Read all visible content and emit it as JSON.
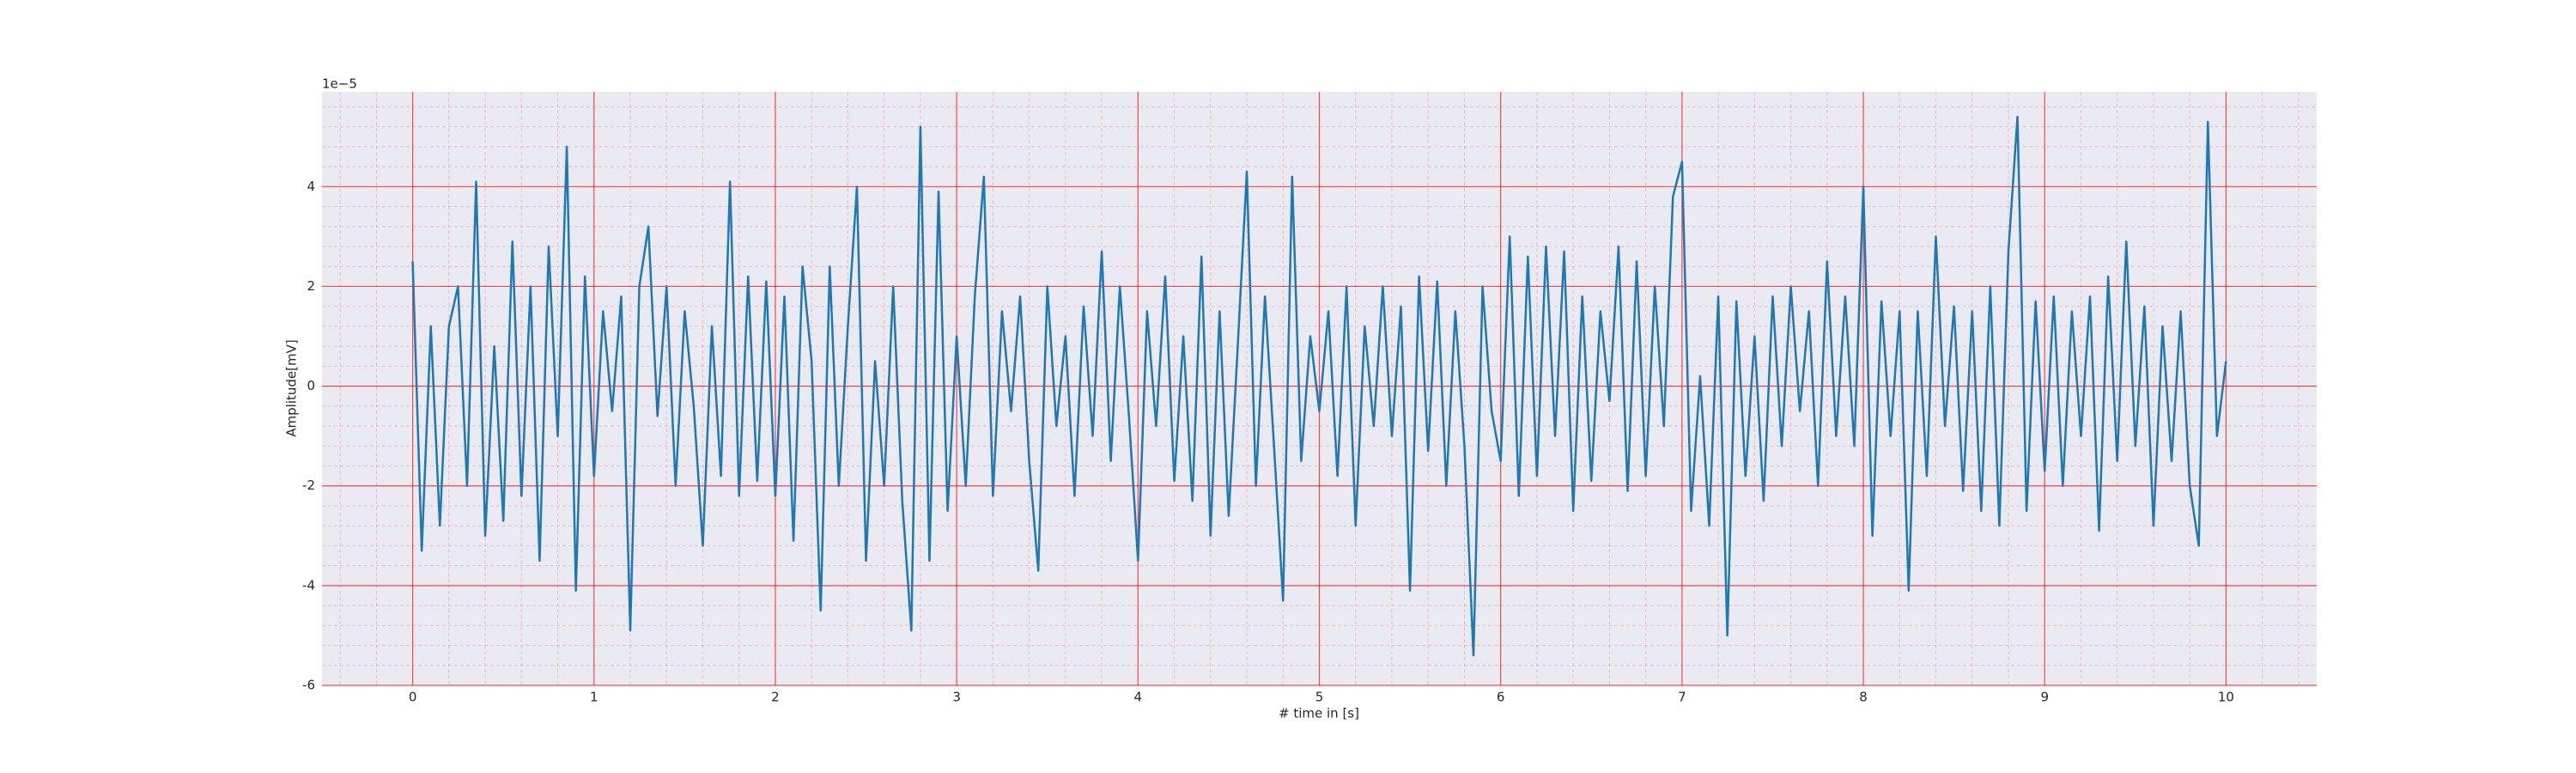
{
  "chart_data": {
    "type": "line",
    "xlabel": "# time in [s]",
    "ylabel": "Amplitude[mV]",
    "y_offset_label": "1e−5",
    "x": [
      0,
      0.05,
      0.1,
      0.15,
      0.2,
      0.25,
      0.3,
      0.35,
      0.4,
      0.45,
      0.5,
      0.55,
      0.6,
      0.65,
      0.7,
      0.75,
      0.8,
      0.85,
      0.9,
      0.95,
      1,
      1.05,
      1.1,
      1.15,
      1.2,
      1.25,
      1.3,
      1.35,
      1.4,
      1.45,
      1.5,
      1.55,
      1.6,
      1.65,
      1.7,
      1.75,
      1.8,
      1.85,
      1.9,
      1.95,
      2,
      2.05,
      2.1,
      2.15,
      2.2,
      2.25,
      2.3,
      2.35,
      2.4,
      2.45,
      2.5,
      2.55,
      2.6,
      2.65,
      2.7,
      2.75,
      2.8,
      2.85,
      2.9,
      2.95,
      3,
      3.05,
      3.1,
      3.15,
      3.2,
      3.25,
      3.3,
      3.35,
      3.4,
      3.45,
      3.5,
      3.55,
      3.6,
      3.65,
      3.7,
      3.75,
      3.8,
      3.85,
      3.9,
      3.95,
      4,
      4.05,
      4.1,
      4.15,
      4.2,
      4.25,
      4.3,
      4.35,
      4.4,
      4.45,
      4.5,
      4.55,
      4.6,
      4.65,
      4.7,
      4.75,
      4.8,
      4.85,
      4.9,
      4.95,
      5,
      5.05,
      5.1,
      5.15,
      5.2,
      5.25,
      5.3,
      5.35,
      5.4,
      5.45,
      5.5,
      5.55,
      5.6,
      5.65,
      5.7,
      5.75,
      5.8,
      5.85,
      5.9,
      5.95,
      6,
      6.05,
      6.1,
      6.15,
      6.2,
      6.25,
      6.3,
      6.35,
      6.4,
      6.45,
      6.5,
      6.55,
      6.6,
      6.65,
      6.7,
      6.75,
      6.8,
      6.85,
      6.9,
      6.95,
      7,
      7.05,
      7.1,
      7.15,
      7.2,
      7.25,
      7.3,
      7.35,
      7.4,
      7.45,
      7.5,
      7.55,
      7.6,
      7.65,
      7.7,
      7.75,
      7.8,
      7.85,
      7.9,
      7.95,
      8,
      8.05,
      8.1,
      8.15,
      8.2,
      8.25,
      8.3,
      8.35,
      8.4,
      8.45,
      8.5,
      8.55,
      8.6,
      8.65,
      8.7,
      8.75,
      8.8,
      8.85,
      8.9,
      8.95,
      9,
      9.05,
      9.1,
      9.15,
      9.2,
      9.25,
      9.3,
      9.35,
      9.4,
      9.45,
      9.5,
      9.55,
      9.6,
      9.65,
      9.7,
      9.75,
      9.8,
      9.85,
      9.9,
      9.95,
      10
    ],
    "series": [
      {
        "color": "#1f77b4",
        "values": [
          2.5,
          -3.3,
          1.2,
          -2.8,
          1.2,
          2.0,
          -2.0,
          4.1,
          -3.0,
          0.8,
          -2.7,
          2.9,
          -2.2,
          2.0,
          -3.5,
          2.8,
          -1.0,
          4.8,
          -4.1,
          2.2,
          -1.8,
          1.5,
          -0.5,
          1.8,
          -4.9,
          2.0,
          3.2,
          -0.6,
          2.0,
          -2.0,
          1.5,
          -0.4,
          -3.2,
          1.2,
          -1.8,
          4.1,
          -2.2,
          2.2,
          -1.9,
          2.1,
          -2.2,
          1.8,
          -3.1,
          2.4,
          0.5,
          -4.5,
          2.4,
          -2.0,
          1.2,
          4.0,
          -3.5,
          0.5,
          -2.0,
          2.0,
          -2.3,
          -4.9,
          5.2,
          -3.5,
          3.9,
          -2.5,
          1.0,
          -2.0,
          1.8,
          4.2,
          -2.2,
          1.5,
          -0.5,
          1.8,
          -1.5,
          -3.7,
          2.0,
          -0.8,
          1.0,
          -2.2,
          1.6,
          -1.0,
          2.7,
          -1.5,
          2.0,
          -0.6,
          -3.5,
          1.5,
          -0.8,
          2.2,
          -1.9,
          1.0,
          -2.3,
          2.6,
          -3.0,
          1.5,
          -2.6,
          0.8,
          4.3,
          -2.0,
          1.8,
          -1.2,
          -4.3,
          4.2,
          -1.5,
          1.0,
          -0.5,
          1.5,
          -1.8,
          2.0,
          -2.8,
          1.2,
          -0.8,
          2.0,
          -1.0,
          1.6,
          -4.1,
          2.2,
          -1.3,
          2.1,
          -2.0,
          1.5,
          -1.2,
          -5.4,
          2.0,
          -0.5,
          -1.5,
          3.0,
          -2.2,
          2.6,
          -1.8,
          2.8,
          -1.0,
          2.7,
          -2.5,
          1.8,
          -1.9,
          1.5,
          -0.3,
          2.8,
          -2.1,
          2.5,
          -1.8,
          2.0,
          -0.8,
          3.8,
          4.5,
          -2.5,
          0.2,
          -2.8,
          1.8,
          -5.0,
          1.7,
          -1.8,
          1.0,
          -2.3,
          1.8,
          -1.2,
          2.0,
          -0.5,
          1.5,
          -2.0,
          2.5,
          -1.0,
          1.8,
          -1.2,
          4.0,
          -3.0,
          1.7,
          -1.0,
          1.5,
          -4.1,
          1.5,
          -1.8,
          3.0,
          -0.8,
          1.6,
          -2.1,
          1.5,
          -2.5,
          2.0,
          -2.8,
          2.7,
          5.4,
          -2.5,
          1.7,
          -1.7,
          1.8,
          -2.0,
          1.5,
          -1.0,
          1.8,
          -2.9,
          2.2,
          -1.5,
          2.9,
          -1.2,
          1.6,
          -2.8,
          1.2,
          -1.5,
          1.5,
          -2.0,
          -3.2,
          5.3,
          -1.0,
          0.5
        ]
      }
    ],
    "xlim": [
      -0.5,
      10.5
    ],
    "xticks": [
      0,
      1,
      2,
      3,
      4,
      5,
      6,
      7,
      8,
      9,
      10
    ],
    "ylim": [
      -6,
      5.9
    ],
    "yticks": [
      -6,
      -4,
      -2,
      0,
      2,
      4
    ],
    "grid": true,
    "grid_color": "#ff0000",
    "minor_grid": true,
    "minor_divisions": 5,
    "background": "#eaeaf2"
  }
}
